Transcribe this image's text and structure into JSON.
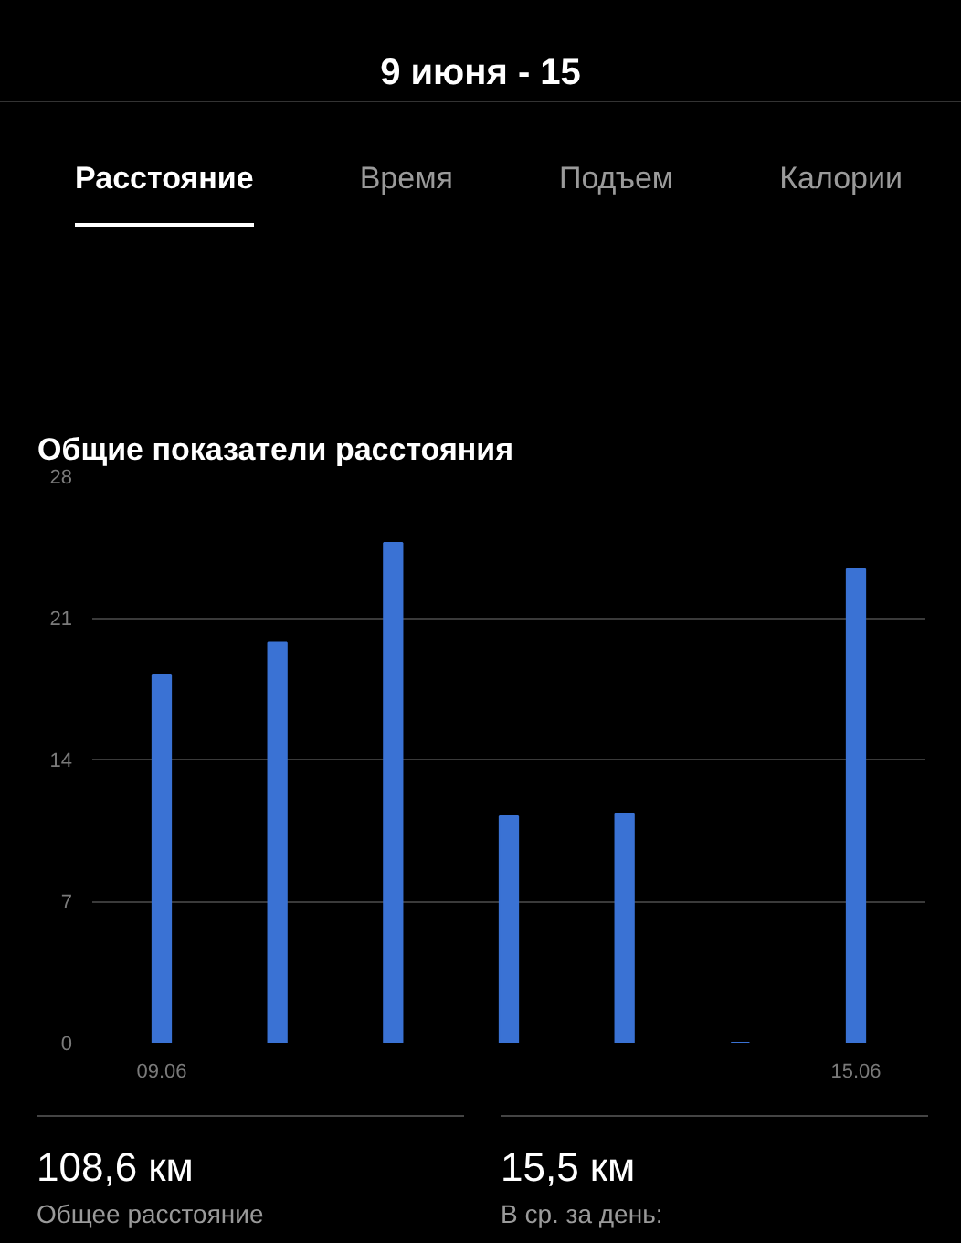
{
  "chart_data": {
    "type": "bar",
    "title": "Общие показатели расстояния",
    "categories": [
      "09.06",
      null,
      null,
      null,
      null,
      null,
      "15.06"
    ],
    "values": [
      18.2,
      19.8,
      24.7,
      11.2,
      11.3,
      0,
      23.4
    ],
    "color": "#3a72d4",
    "ylim": [
      0,
      28
    ],
    "yticks": [
      0,
      7,
      14,
      21,
      28
    ],
    "grid": "y",
    "annotations": [
      "9 июня - 15",
      "Расстояние",
      "Время",
      "Подъем",
      "Калории",
      "108,6 км",
      "Общее расстояние",
      "15,5 км",
      "В ср. за день:"
    ]
  }
}
